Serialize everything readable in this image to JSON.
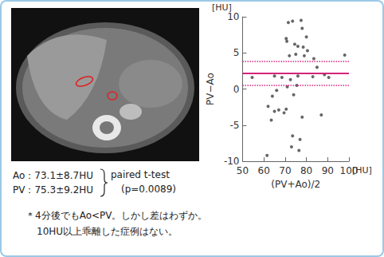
{
  "chart_data": {
    "type": "scatter",
    "x_label": "(PV+Ao)/2",
    "y_label": "PV−Ao",
    "x_unit": "[HU]",
    "y_unit": "[HU]",
    "xlim": [
      50,
      100
    ],
    "xticks": [
      50,
      60,
      70,
      80,
      90,
      100
    ],
    "ylim": [
      -10,
      10
    ],
    "yticks": [
      -10,
      -5,
      0,
      5,
      10
    ],
    "grid": false,
    "color": "#404040",
    "marker": "circle",
    "mean_line": 2.2,
    "limits": [
      0.5,
      3.8
    ],
    "line_color": "#d4237a",
    "x": [
      71.5,
      73.5,
      77.5,
      70.5,
      70.8,
      74.5,
      76.0,
      78.5,
      80.5,
      80.0,
      78.0,
      83.5,
      75.0,
      72.0,
      79.0,
      85.0,
      98.0,
      54.5,
      65.0,
      68.5,
      72.5,
      76.0,
      83.0,
      90.5,
      88.5,
      66.0,
      71.0,
      75.5,
      74.0,
      64.0,
      62.0,
      67.0,
      70.5,
      69.5,
      65.0,
      63.5,
      78.0,
      87.0,
      73.5,
      77.0,
      76.5,
      73.0,
      61.5
    ],
    "values": [
      9.2,
      9.4,
      9.5,
      7.0,
      6.6,
      6.2,
      5.9,
      5.8,
      5.3,
      7.2,
      8.4,
      4.2,
      4.8,
      4.6,
      4.6,
      3.0,
      4.7,
      1.6,
      1.8,
      1.6,
      1.3,
      1.8,
      1.7,
      1.6,
      2.0,
      -0.2,
      0.3,
      0.5,
      -0.8,
      -1.0,
      -2.4,
      -2.9,
      -2.8,
      -3.3,
      -3.1,
      -4.3,
      -3.9,
      -3.6,
      -6.5,
      -7.0,
      -8.5,
      -8.0,
      -9.2
    ]
  },
  "text": {
    "ao": "Ao：73.1±8.7HU",
    "pv": "PV：75.3±9.2HU",
    "test": "paired t-test",
    "p": "(p=0.0089)",
    "note": [
      "＊4分後でもAo<PV。しかし差はわずか。",
      "10HU以上乖離した症例はない。"
    ]
  }
}
